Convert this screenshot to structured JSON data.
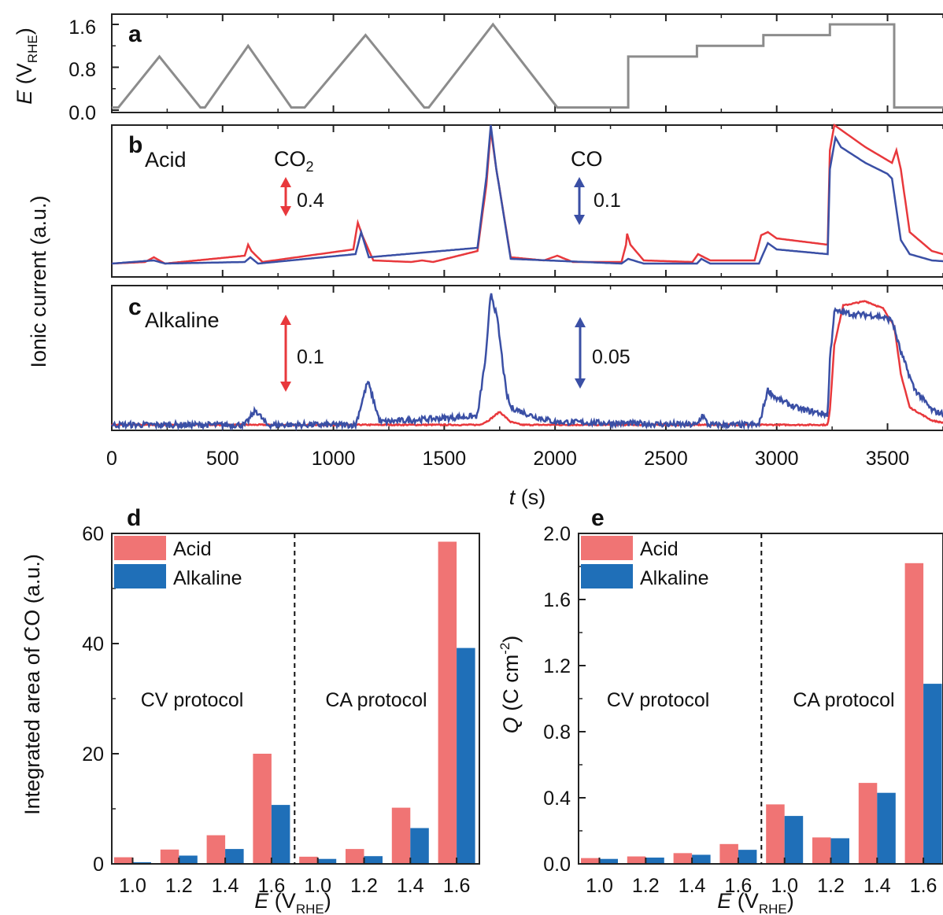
{
  "colors": {
    "potential": "#8c8c8c",
    "co2": "#e8383c",
    "co": "#3a4fa5",
    "bar_acid": "#f07474",
    "bar_alkaline": "#1f6fb8",
    "frame": "#222222"
  },
  "shared_x": {
    "label_sym": "t",
    "label_rest": " (s)",
    "ticks": [
      0,
      500,
      1000,
      1500,
      2000,
      2500,
      3000,
      3500
    ],
    "xlim": [
      0,
      3800
    ]
  },
  "panel_a": {
    "letter": "a",
    "ylabel_sym": "E",
    "ylabel_pre": " (V",
    "ylabel_sub": "RHE",
    "ylabel_post": ")",
    "ticks": [
      "0.0",
      "0.8",
      "1.6"
    ]
  },
  "panel_b": {
    "letter": "b",
    "condition": "Acid",
    "co2_label": "CO",
    "co2_sub": "2",
    "co2_scale": "0.4",
    "co_label": "CO",
    "co_scale": "0.1"
  },
  "panel_c": {
    "letter": "c",
    "condition": "Alkaline",
    "co2_scale": "0.1",
    "co_scale": "0.05"
  },
  "ionic_ylabel": "Ionic current (a.u.)",
  "panel_d": {
    "letter": "d",
    "ylabel": "Integrated area of CO (a.u.)",
    "ticks": [
      "0",
      "20",
      "40",
      "60"
    ],
    "legend": [
      "Acid",
      "Alkaline"
    ],
    "cv_label": "CV protocol",
    "ca_label": "CA protocol",
    "xlabel_sym": "E",
    "xlabel_pre": " (V",
    "xlabel_sub": "RHE",
    "xlabel_post": ")"
  },
  "panel_e": {
    "letter": "e",
    "ylabel_sym": "Q",
    "ylabel_pre": " (C cm",
    "ylabel_sup": "-2",
    "ylabel_post": ")",
    "ticks": [
      "0.0",
      "0.4",
      "0.8",
      "1.2",
      "1.6",
      "2.0"
    ],
    "legend": [
      "Acid",
      "Alkaline"
    ],
    "cv_label": "CV protocol",
    "ca_label": "CA protocol",
    "xlabel_sym": "E",
    "xlabel_pre": " (V",
    "xlabel_sub": "RHE",
    "xlabel_post": ")"
  },
  "chart_data": [
    {
      "id": "a",
      "type": "line",
      "ylim": [
        0,
        1.6
      ],
      "series": [
        {
          "x": [
            0,
            30,
            215,
            400,
            420,
            615,
            810,
            870,
            1145,
            1410,
            1430,
            1720,
            2010,
            2330,
            2330,
            2640,
            2640,
            2940,
            2940,
            3240,
            3240,
            3530,
            3530,
            3800
          ],
          "y": [
            0.05,
            0.05,
            1.0,
            0.05,
            0.05,
            1.2,
            0.05,
            0.05,
            1.4,
            0.05,
            0.05,
            1.6,
            0.05,
            0.05,
            1.0,
            1.0,
            1.2,
            1.2,
            1.4,
            1.4,
            1.6,
            1.6,
            0.05,
            0.05
          ]
        }
      ]
    },
    {
      "id": "b",
      "type": "line",
      "series": [
        {
          "name": "CO2",
          "x": [
            0,
            150,
            190,
            240,
            600,
            615,
            630,
            680,
            1090,
            1110,
            1130,
            1180,
            1350,
            1400,
            1450,
            1650,
            1690,
            1710,
            1735,
            1800,
            1950,
            2010,
            2080,
            2300,
            2320,
            2325,
            2340,
            2400,
            2620,
            2645,
            2700,
            2900,
            2930,
            2960,
            3000,
            3230,
            3240,
            3260,
            3290,
            3400,
            3520,
            3540,
            3560,
            3600,
            3700,
            3800
          ],
          "y": [
            0.0,
            0.01,
            0.04,
            0.0,
            0.05,
            0.12,
            0.08,
            0.01,
            0.09,
            0.26,
            0.18,
            0.02,
            0.01,
            0.02,
            0.01,
            0.08,
            0.5,
            0.85,
            0.6,
            0.04,
            0.02,
            0.05,
            0.01,
            0.01,
            0.12,
            0.19,
            0.12,
            0.02,
            0.01,
            0.06,
            0.02,
            0.02,
            0.18,
            0.2,
            0.16,
            0.12,
            0.72,
            0.88,
            0.85,
            0.74,
            0.64,
            0.72,
            0.6,
            0.2,
            0.08,
            0.04
          ]
        },
        {
          "name": "CO",
          "x": [
            0,
            190,
            240,
            600,
            625,
            660,
            1100,
            1125,
            1160,
            1650,
            1690,
            1710,
            1735,
            1800,
            2300,
            2330,
            2400,
            2640,
            2660,
            2700,
            2920,
            2960,
            3000,
            3230,
            3240,
            3265,
            3290,
            3400,
            3500,
            3520,
            3560,
            3600,
            3700,
            3800
          ],
          "y": [
            0.0,
            0.02,
            0.0,
            0.01,
            0.04,
            0.0,
            0.06,
            0.2,
            0.04,
            0.1,
            0.55,
            0.88,
            0.6,
            0.03,
            0.0,
            0.03,
            0.0,
            0.0,
            0.03,
            0.0,
            0.0,
            0.13,
            0.09,
            0.06,
            0.6,
            0.8,
            0.74,
            0.64,
            0.57,
            0.54,
            0.15,
            0.06,
            0.02,
            0.01
          ]
        }
      ]
    },
    {
      "id": "c",
      "type": "line",
      "series": [
        {
          "name": "CO2",
          "x": [
            0,
            1660,
            1700,
            1750,
            1800,
            1850,
            3230,
            3240,
            3260,
            3300,
            3400,
            3480,
            3530,
            3560,
            3600,
            3700,
            3800
          ],
          "y": [
            0.0,
            0.0,
            0.03,
            0.09,
            0.02,
            0.0,
            0.0,
            0.1,
            0.55,
            0.82,
            0.85,
            0.8,
            0.68,
            0.35,
            0.12,
            0.03,
            0.0
          ],
          "noise": 0.004
        },
        {
          "name": "CO",
          "x": [
            0,
            600,
            650,
            700,
            1100,
            1155,
            1210,
            1650,
            1690,
            1710,
            1740,
            1780,
            1800,
            1900,
            2000,
            2640,
            2665,
            2690,
            2920,
            2960,
            3000,
            3100,
            3230,
            3240,
            3260,
            3350,
            3450,
            3520,
            3560,
            3620,
            3700,
            3800
          ],
          "y": [
            0.0,
            0.0,
            0.1,
            0.0,
            0.0,
            0.3,
            0.02,
            0.06,
            0.5,
            0.92,
            0.72,
            0.22,
            0.12,
            0.06,
            0.02,
            0.0,
            0.07,
            0.0,
            0.0,
            0.24,
            0.18,
            0.11,
            0.07,
            0.45,
            0.78,
            0.76,
            0.75,
            0.72,
            0.5,
            0.25,
            0.1,
            0.05
          ],
          "noise": 0.02
        }
      ]
    },
    {
      "id": "d",
      "type": "bar",
      "categories": [
        "1.0",
        "1.2",
        "1.4",
        "1.6",
        "1.0",
        "1.2",
        "1.4",
        "1.6"
      ],
      "ylim": [
        0,
        60
      ],
      "series": [
        {
          "name": "Acid",
          "values": [
            1.2,
            2.6,
            5.2,
            20.0,
            1.3,
            2.7,
            10.2,
            58.5
          ]
        },
        {
          "name": "Alkaline",
          "values": [
            0.3,
            1.5,
            2.7,
            10.7,
            0.9,
            1.4,
            6.5,
            39.2
          ]
        }
      ],
      "groups": [
        "CV protocol",
        "CA protocol"
      ]
    },
    {
      "id": "e",
      "type": "bar",
      "categories": [
        "1.0",
        "1.2",
        "1.4",
        "1.6",
        "1.0",
        "1.2",
        "1.4",
        "1.6"
      ],
      "ylim": [
        0,
        2.0
      ],
      "series": [
        {
          "name": "Acid",
          "values": [
            0.035,
            0.045,
            0.065,
            0.12,
            0.36,
            0.16,
            0.49,
            1.82
          ]
        },
        {
          "name": "Alkaline",
          "values": [
            0.03,
            0.038,
            0.055,
            0.085,
            0.29,
            0.155,
            0.43,
            1.09
          ]
        }
      ],
      "groups": [
        "CV protocol",
        "CA protocol"
      ]
    }
  ]
}
